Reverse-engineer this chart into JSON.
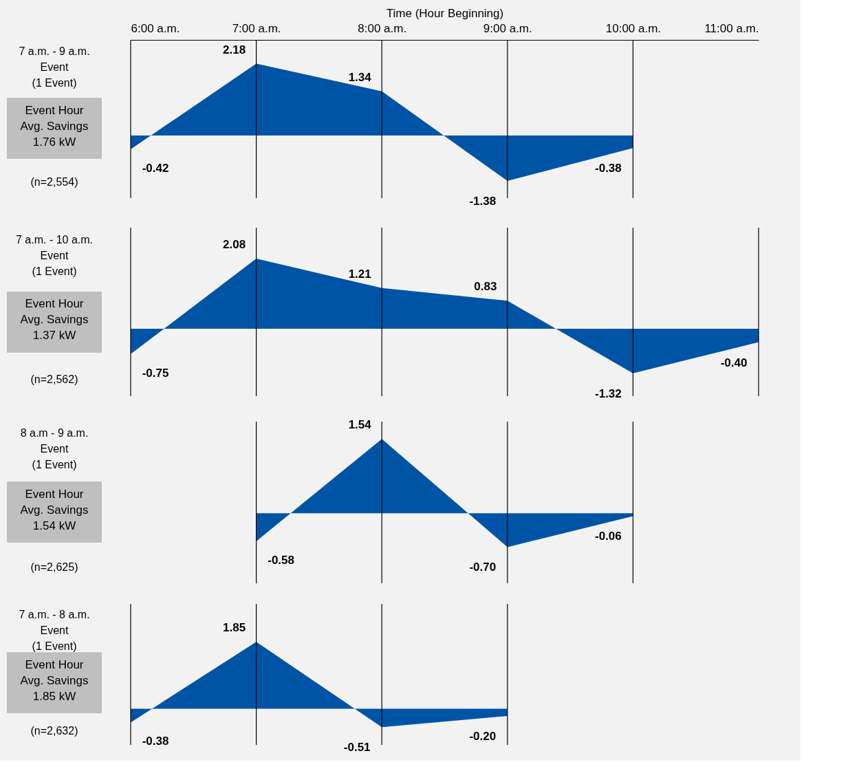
{
  "chart_data": [
    {
      "type": "area",
      "xlabel": "Time (Hour Beginning)",
      "x": [
        6,
        7,
        8,
        9,
        10
      ],
      "values": [
        -0.42,
        2.18,
        1.34,
        -1.38,
        -0.38
      ],
      "value_labels": [
        "-0.42",
        "2.18",
        "1.34",
        "-1.38",
        "-0.38"
      ],
      "color": "#0054a6",
      "xlim": [
        6,
        11
      ],
      "ylim": [
        -1.9,
        2.9
      ],
      "xticks": [
        {
          "value": 6,
          "label": "6:00 a.m."
        },
        {
          "value": 7,
          "label": "7:00 a.m."
        },
        {
          "value": 8,
          "label": "8:00 a.m."
        },
        {
          "value": 9,
          "label": "9:00 a.m."
        },
        {
          "value": 10,
          "label": "10:00 a.m."
        },
        {
          "value": 11,
          "label": "11:00 a.m."
        }
      ],
      "tick_labels": "x",
      "grid": "x",
      "annotations": [
        "7 a.m. - 9 a.m.\nEvent\n(1 Event)",
        "Event Hour\nAvg. Savings\n1.76 kW",
        "(n=2,554)"
      ]
    },
    {
      "type": "area",
      "x": [
        6,
        7,
        8,
        9,
        10,
        11
      ],
      "values": [
        -0.75,
        2.08,
        1.21,
        0.83,
        -1.32,
        -0.4
      ],
      "value_labels": [
        "-0.75",
        "2.08",
        "1.21",
        "0.83",
        "-1.32",
        "-0.40"
      ],
      "color": "#0054a6",
      "xlim": [
        6,
        11
      ],
      "ylim": [
        -2,
        3
      ],
      "tick_labels": false,
      "grid": "x",
      "annotations": [
        "7 a.m. - 10 a.m.\nEvent\n(1 Event)",
        "Event Hour\nAvg. Savings\n1.37 kW",
        "(n=2,562)"
      ]
    },
    {
      "type": "area",
      "x": [
        7,
        8,
        9,
        10
      ],
      "values": [
        -0.58,
        1.54,
        -0.7,
        -0.06
      ],
      "value_labels": [
        "-0.58",
        "1.54",
        "-0.70",
        "-0.06"
      ],
      "color": "#0054a6",
      "xlim": [
        6,
        11
      ],
      "ylim": [
        -1.45,
        1.9
      ],
      "tick_labels": false,
      "grid": "x",
      "annotations": [
        "8 a.m - 9 a.m.\nEvent\n(1 Event)",
        "Event Hour\nAvg. Savings\n1.54 kW",
        "(n=2,625)"
      ]
    },
    {
      "type": "area",
      "x": [
        6,
        7,
        8,
        9
      ],
      "values": [
        -0.38,
        1.85,
        -0.51,
        -0.2
      ],
      "value_labels": [
        "-0.38",
        "1.85",
        "-0.51",
        "-0.20"
      ],
      "color": "#0054a6",
      "xlim": [
        6,
        11
      ],
      "ylim": [
        -1,
        2.9
      ],
      "tick_labels": false,
      "grid": "x",
      "annotations": [
        "7 a.m. - 8 a.m.\nEvent\n(1 Event)",
        "Event Hour\nAvg. Savings\n1.85 kW",
        "(n=2,632)"
      ]
    }
  ]
}
